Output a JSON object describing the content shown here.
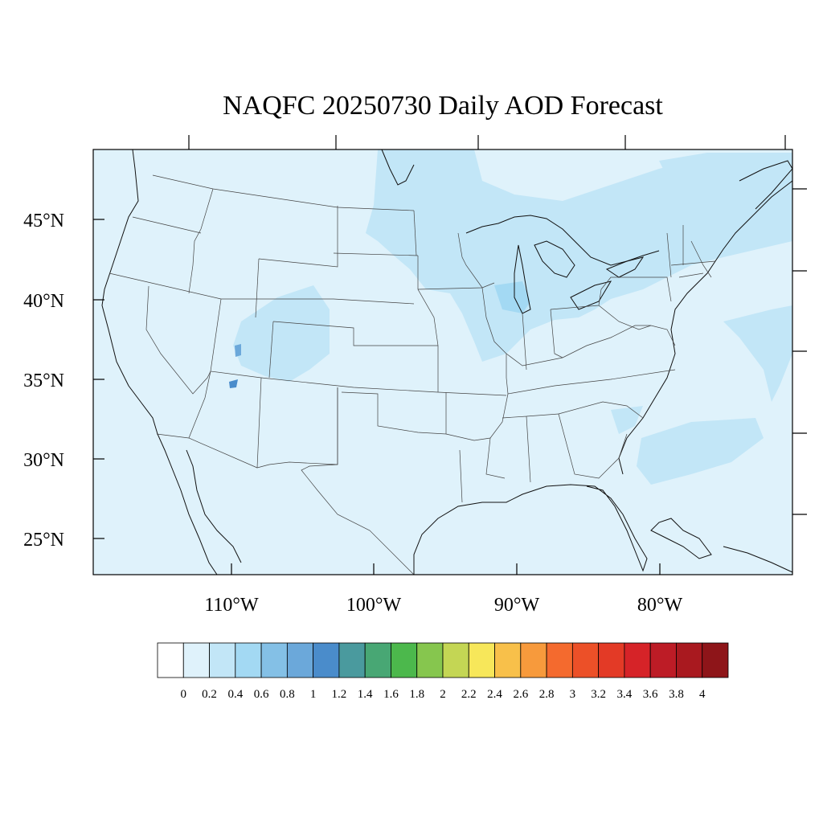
{
  "title": "NAQFC 20250730 Daily AOD Forecast",
  "map": {
    "background_color": "#dff2fb",
    "aod_colors": {
      "level_0_2_0_4": "#c2e6f7",
      "level_0_4_0_6": "#a3d9f3",
      "level_0_6_0_8": "#84c0e6",
      "level_0_8_1": "#6ba8da",
      "level_1_1_2": "#4a8ccb"
    },
    "lat_ticks": [
      "45°N",
      "40°N",
      "35°N",
      "30°N",
      "25°N"
    ],
    "lon_ticks": [
      "110°W",
      "100°W",
      "90°W",
      "80°W"
    ]
  },
  "colorbar": {
    "labels": [
      "0",
      "0.2",
      "0.4",
      "0.6",
      "0.8",
      "1",
      "1.2",
      "1.4",
      "1.6",
      "1.8",
      "2",
      "2.2",
      "2.4",
      "2.6",
      "2.8",
      "3",
      "3.2",
      "3.4",
      "3.6",
      "3.8",
      "4"
    ],
    "colors": [
      "#ffffff",
      "#dff2fb",
      "#c2e6f7",
      "#a3d9f3",
      "#84c0e6",
      "#6ba8da",
      "#4a8ccb",
      "#4a9a9e",
      "#48a774",
      "#4cb84c",
      "#86c64e",
      "#c4d654",
      "#f7e75a",
      "#f8c04a",
      "#f79a3c",
      "#f46a2e",
      "#ec5028",
      "#e33a26",
      "#d62328",
      "#bd1c26",
      "#a9191f",
      "#8e1519"
    ]
  }
}
